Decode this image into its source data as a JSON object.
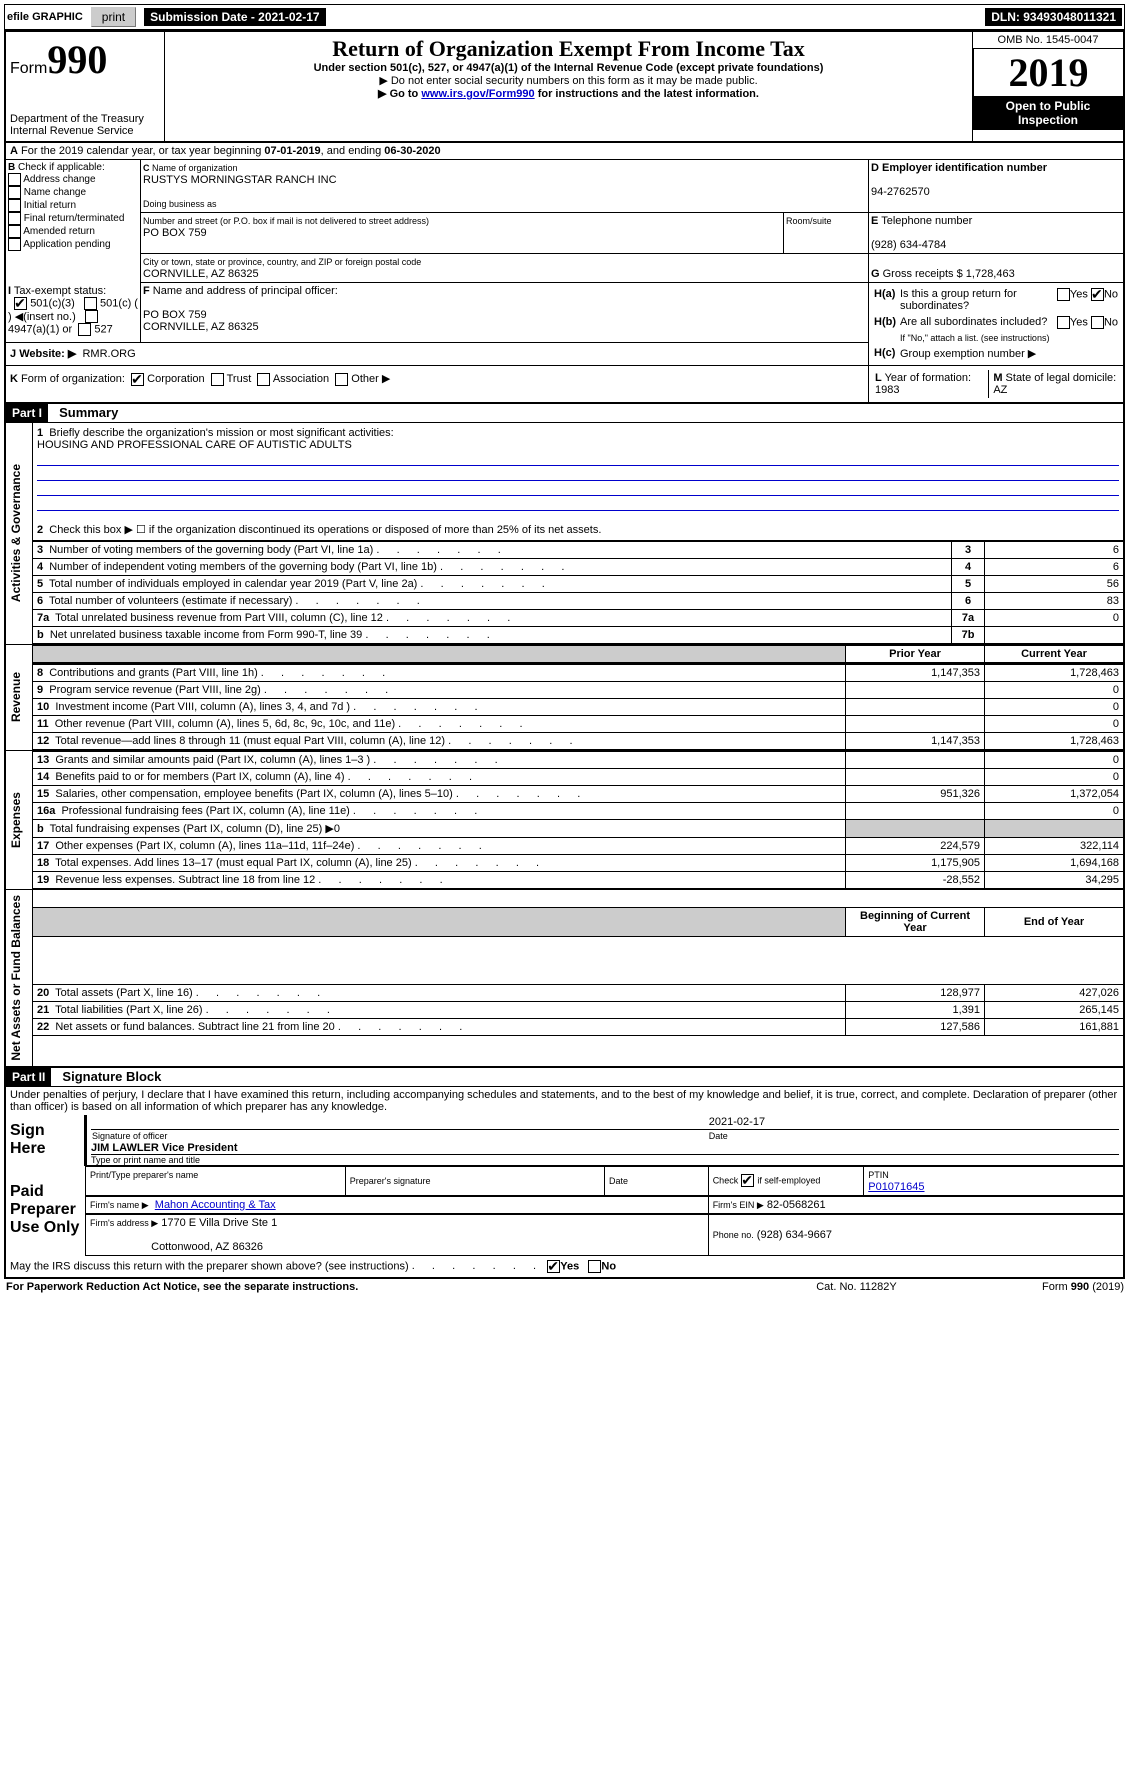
{
  "topbar": {
    "efile": "efile GRAPHIC",
    "print": "print",
    "subdate": "Submission Date - 2021-02-17",
    "dln": "DLN: 93493048011321"
  },
  "header": {
    "form_prefix": "Form",
    "form_number": "990",
    "title": "Return of Organization Exempt From Income Tax",
    "subtitle": "Under section 501(c), 527, or 4947(a)(1) of the Internal Revenue Code (except private foundations)",
    "note1": "Do not enter social security numbers on this form as it may be made public.",
    "note2_pre": "Go to ",
    "note2_link": "www.irs.gov/Form990",
    "note2_post": " for instructions and the latest information.",
    "dept": "Department of the Treasury",
    "irs": "Internal Revenue Service",
    "omb": "OMB No. 1545-0047",
    "year": "2019",
    "open": "Open to Public Inspection"
  },
  "A": {
    "text_pre": "For the 2019 calendar year, or tax year beginning ",
    "begin": "07-01-2019",
    "mid": ", and ending ",
    "end": "06-30-2020"
  },
  "B": {
    "label": "Check if applicable:",
    "opts": [
      "Address change",
      "Name change",
      "Initial return",
      "Final return/terminated",
      "Amended return",
      "Application pending"
    ]
  },
  "C": {
    "name_label": "Name of organization",
    "name": "RUSTYS MORNINGSTAR RANCH INC",
    "dba_label": "Doing business as",
    "addr_label": "Number and street (or P.O. box if mail is not delivered to street address)",
    "room_label": "Room/suite",
    "addr": "PO BOX 759",
    "city_label": "City or town, state or province, country, and ZIP or foreign postal code",
    "city": "CORNVILLE, AZ  86325"
  },
  "D": {
    "label": "Employer identification number",
    "value": "94-2762570"
  },
  "E": {
    "label": "Telephone number",
    "value": "(928) 634-4784"
  },
  "G": {
    "label": "Gross receipts $",
    "value": "1,728,463"
  },
  "F": {
    "label": "Name and address of principal officer:",
    "line1": "PO BOX 759",
    "line2": "CORNVILLE, AZ  86325"
  },
  "H": {
    "a": "Is this a group return for subordinates?",
    "b": "Are all subordinates included?",
    "b_note": "If \"No,\" attach a list. (see instructions)",
    "c": "Group exemption number ▶",
    "yes": "Yes",
    "no": "No"
  },
  "I": {
    "label": "Tax-exempt status:",
    "opts": [
      "501(c)(3)",
      "501(c) (  ) ◀(insert no.)",
      "4947(a)(1) or",
      "527"
    ]
  },
  "J": {
    "label": "Website: ▶",
    "value": "RMR.ORG"
  },
  "K": {
    "label": "Form of organization:",
    "opts": [
      "Corporation",
      "Trust",
      "Association",
      "Other ▶"
    ]
  },
  "L": {
    "label": "Year of formation:",
    "value": "1983"
  },
  "M": {
    "label": "State of legal domicile:",
    "value": "AZ"
  },
  "partI": {
    "header": "Part I",
    "title": "Summary",
    "q1_label": "Briefly describe the organization's mission or most significant activities:",
    "q1_value": "HOUSING AND PROFESSIONAL CARE OF AUTISTIC ADULTS",
    "q2": "Check this box ▶ ☐  if the organization discontinued its operations or disposed of more than 25% of its net assets.",
    "rows_gov": [
      {
        "n": "3",
        "t": "Number of voting members of the governing body (Part VI, line 1a)",
        "k": "3",
        "v": "6"
      },
      {
        "n": "4",
        "t": "Number of independent voting members of the governing body (Part VI, line 1b)",
        "k": "4",
        "v": "6"
      },
      {
        "n": "5",
        "t": "Total number of individuals employed in calendar year 2019 (Part V, line 2a)",
        "k": "5",
        "v": "56"
      },
      {
        "n": "6",
        "t": "Total number of volunteers (estimate if necessary)",
        "k": "6",
        "v": "83"
      },
      {
        "n": "7a",
        "t": "Total unrelated business revenue from Part VIII, column (C), line 12",
        "k": "7a",
        "v": "0"
      },
      {
        "n": "b",
        "t": "Net unrelated business taxable income from Form 990-T, line 39",
        "k": "7b",
        "v": ""
      }
    ],
    "col_py": "Prior Year",
    "col_cy": "Current Year",
    "col_bocy": "Beginning of Current Year",
    "col_eoy": "End of Year",
    "rows_rev": [
      {
        "n": "8",
        "t": "Contributions and grants (Part VIII, line 1h)",
        "py": "1,147,353",
        "cy": "1,728,463"
      },
      {
        "n": "9",
        "t": "Program service revenue (Part VIII, line 2g)",
        "py": "",
        "cy": "0"
      },
      {
        "n": "10",
        "t": "Investment income (Part VIII, column (A), lines 3, 4, and 7d )",
        "py": "",
        "cy": "0"
      },
      {
        "n": "11",
        "t": "Other revenue (Part VIII, column (A), lines 5, 6d, 8c, 9c, 10c, and 11e)",
        "py": "",
        "cy": "0"
      },
      {
        "n": "12",
        "t": "Total revenue—add lines 8 through 11 (must equal Part VIII, column (A), line 12)",
        "py": "1,147,353",
        "cy": "1,728,463"
      }
    ],
    "rows_exp": [
      {
        "n": "13",
        "t": "Grants and similar amounts paid (Part IX, column (A), lines 1–3 )",
        "py": "",
        "cy": "0"
      },
      {
        "n": "14",
        "t": "Benefits paid to or for members (Part IX, column (A), line 4)",
        "py": "",
        "cy": "0"
      },
      {
        "n": "15",
        "t": "Salaries, other compensation, employee benefits (Part IX, column (A), lines 5–10)",
        "py": "951,326",
        "cy": "1,372,054"
      },
      {
        "n": "16a",
        "t": "Professional fundraising fees (Part IX, column (A), line 11e)",
        "py": "",
        "cy": "0"
      },
      {
        "n": "b",
        "t": "Total fundraising expenses (Part IX, column (D), line 25) ▶0",
        "py": "",
        "cy": ""
      },
      {
        "n": "17",
        "t": "Other expenses (Part IX, column (A), lines 11a–11d, 11f–24e)",
        "py": "224,579",
        "cy": "322,114"
      },
      {
        "n": "18",
        "t": "Total expenses. Add lines 13–17 (must equal Part IX, column (A), line 25)",
        "py": "1,175,905",
        "cy": "1,694,168"
      },
      {
        "n": "19",
        "t": "Revenue less expenses. Subtract line 18 from line 12",
        "py": "-28,552",
        "cy": "34,295"
      }
    ],
    "rows_na": [
      {
        "n": "20",
        "t": "Total assets (Part X, line 16)",
        "py": "128,977",
        "cy": "427,026"
      },
      {
        "n": "21",
        "t": "Total liabilities (Part X, line 26)",
        "py": "1,391",
        "cy": "265,145"
      },
      {
        "n": "22",
        "t": "Net assets or fund balances. Subtract line 21 from line 20",
        "py": "127,586",
        "cy": "161,881"
      }
    ],
    "vlabels": {
      "gov": "Activities & Governance",
      "rev": "Revenue",
      "exp": "Expenses",
      "na": "Net Assets or Fund Balances"
    }
  },
  "partII": {
    "header": "Part II",
    "title": "Signature Block",
    "perjury": "Under penalties of perjury, I declare that I have examined this return, including accompanying schedules and statements, and to the best of my knowledge and belief, it is true, correct, and complete. Declaration of preparer (other than officer) is based on all information of which preparer has any knowledge.",
    "sign_here": "Sign Here",
    "sig_officer": "Signature of officer",
    "date_label": "Date",
    "date_value": "2021-02-17",
    "officer_name": "JIM LAWLER Vice President",
    "type_name": "Type or print name and title",
    "paid": "Paid Preparer Use Only",
    "prep_name_label": "Print/Type preparer's name",
    "prep_sig_label": "Preparer's signature",
    "check_if": "Check",
    "check_if2": "if self-employed",
    "ptin_label": "PTIN",
    "ptin": "P01071645",
    "firm_name_label": "Firm's name   ▶",
    "firm_name": "Mahon Accounting & Tax",
    "firm_ein_label": "Firm's EIN ▶",
    "firm_ein": "82-0568261",
    "firm_addr_label": "Firm's address ▶",
    "firm_addr1": "1770 E Villa Drive Ste 1",
    "firm_addr2": "Cottonwood, AZ  86326",
    "phone_label": "Phone no.",
    "phone": "(928) 634-9667",
    "discuss": "May the IRS discuss this return with the preparer shown above? (see instructions)",
    "yes": "Yes",
    "no": "No"
  },
  "footer": {
    "paperwork": "For Paperwork Reduction Act Notice, see the separate instructions.",
    "cat": "Cat. No. 11282Y",
    "form": "Form 990 (2019)"
  }
}
